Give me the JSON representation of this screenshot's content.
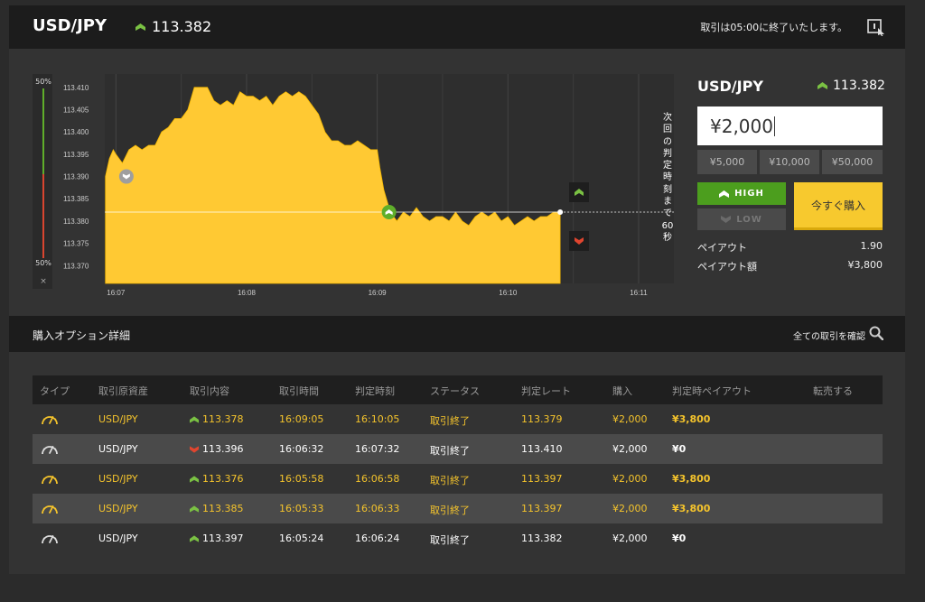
{
  "header": {
    "pair": "USD/JPY",
    "rate": "113.382",
    "rate_direction": "up",
    "message": "取引は05:00に終了いたします。",
    "expand_icon": "expand-icon"
  },
  "gauge": {
    "top_label": "50%",
    "bottom_label": "50%",
    "close_label": "×",
    "high_percent": 50,
    "low_percent": 50
  },
  "chart_data": {
    "type": "area",
    "title": "",
    "xlabel": "",
    "ylabel": "",
    "x_ticks": [
      "16:07",
      "16:08",
      "16:09",
      "16:10",
      "16:11"
    ],
    "y_ticks": [
      "113.410",
      "113.405",
      "113.400",
      "113.395",
      "113.390",
      "113.385",
      "113.380",
      "113.375",
      "113.370"
    ],
    "ylim": [
      113.366,
      113.413
    ],
    "xlim_minutes": [
      6.915,
      11.27
    ],
    "entry_rate": 113.382,
    "series": [
      {
        "x_minutes": [
          6.92,
          6.95,
          6.98,
          7.0,
          7.05,
          7.1,
          7.15,
          7.2,
          7.25,
          7.3,
          7.35,
          7.4,
          7.45,
          7.5,
          7.55,
          7.6,
          7.65,
          7.7,
          7.75,
          7.8,
          7.85,
          7.9,
          7.95,
          8.0,
          8.05,
          8.1,
          8.15,
          8.2,
          8.25,
          8.3,
          8.35,
          8.4,
          8.45,
          8.5,
          8.55,
          8.6,
          8.65,
          8.7,
          8.75,
          8.8,
          8.85,
          8.9,
          8.95,
          9.0,
          9.02,
          9.05,
          9.08,
          9.1,
          9.15,
          9.2,
          9.25,
          9.3,
          9.35,
          9.4,
          9.45,
          9.5,
          9.55,
          9.6,
          9.65,
          9.7,
          9.75,
          9.8,
          9.85,
          9.9,
          9.95,
          10.0,
          10.05,
          10.1,
          10.15,
          10.2,
          10.25,
          10.3,
          10.35,
          10.4
        ],
        "values": [
          113.39,
          113.394,
          113.396,
          113.395,
          113.393,
          113.396,
          113.397,
          113.396,
          113.397,
          113.397,
          113.4,
          113.401,
          113.403,
          113.403,
          113.405,
          113.41,
          113.41,
          113.41,
          113.407,
          113.406,
          113.407,
          113.406,
          113.409,
          113.408,
          113.408,
          113.407,
          113.408,
          113.406,
          113.408,
          113.409,
          113.408,
          113.409,
          113.408,
          113.406,
          113.404,
          113.4,
          113.398,
          113.398,
          113.397,
          113.397,
          113.398,
          113.397,
          113.396,
          113.396,
          113.392,
          113.387,
          113.384,
          113.382,
          113.38,
          113.382,
          113.381,
          113.383,
          113.381,
          113.38,
          113.381,
          113.381,
          113.38,
          113.382,
          113.38,
          113.379,
          113.381,
          113.382,
          113.381,
          113.382,
          113.38,
          113.381,
          113.379,
          113.38,
          113.381,
          113.38,
          113.381,
          113.381,
          113.382,
          113.382
        ]
      }
    ],
    "markers": [
      {
        "x_minutes": 7.08,
        "value": 113.39,
        "type": "down",
        "color": "#9e9e9e"
      },
      {
        "x_minutes": 9.09,
        "value": 113.382,
        "type": "up",
        "color": "#5fae2a"
      }
    ],
    "colors": {
      "area": "#ffc933",
      "grid": "#444444",
      "background": "#2e2e2e"
    }
  },
  "countdown": [
    "次",
    "回",
    "の",
    "判",
    "定",
    "時",
    "刻",
    "ま",
    "で",
    "60",
    "秒"
  ],
  "trade": {
    "pair": "USD/JPY",
    "rate": "113.382",
    "amount": "¥2,000",
    "quick_amounts": [
      "¥5,000",
      "¥10,000",
      "¥50,000"
    ],
    "high_label": "HIGH",
    "low_label": "LOW",
    "buy_label": "今すぐ購入",
    "payout_label": "ペイアウト",
    "payout_value": "1.90",
    "payout_amount_label": "ペイアウト額",
    "payout_amount_value": "¥3,800"
  },
  "details": {
    "title": "購入オプション詳細",
    "all_trades_link": "全ての取引を確認"
  },
  "table": {
    "headers": [
      "タイプ",
      "取引原資産",
      "取引内容",
      "取引時間",
      "判定時刻",
      "ステータス",
      "判定レート",
      "購入",
      "判定時ペイアウト",
      "転売する"
    ],
    "rows": [
      {
        "asset": "USD/JPY",
        "direction": "up",
        "rate": "113.378",
        "time": "16:09:05",
        "expiry": "16:10:05",
        "status": "取引終了",
        "expiry_rate": "113.379",
        "purchase": "¥2,000",
        "payout": "¥3,800",
        "win": true
      },
      {
        "asset": "USD/JPY",
        "direction": "down",
        "rate": "113.396",
        "time": "16:06:32",
        "expiry": "16:07:32",
        "status": "取引終了",
        "expiry_rate": "113.410",
        "purchase": "¥2,000",
        "payout": "¥0",
        "win": false
      },
      {
        "asset": "USD/JPY",
        "direction": "up",
        "rate": "113.376",
        "time": "16:05:58",
        "expiry": "16:06:58",
        "status": "取引終了",
        "expiry_rate": "113.397",
        "purchase": "¥2,000",
        "payout": "¥3,800",
        "win": true
      },
      {
        "asset": "USD/JPY",
        "direction": "up",
        "rate": "113.385",
        "time": "16:05:33",
        "expiry": "16:06:33",
        "status": "取引終了",
        "expiry_rate": "113.397",
        "purchase": "¥2,000",
        "payout": "¥3,800",
        "win": true
      },
      {
        "asset": "USD/JPY",
        "direction": "up",
        "rate": "113.397",
        "time": "16:05:24",
        "expiry": "16:06:24",
        "status": "取引終了",
        "expiry_rate": "113.382",
        "purchase": "¥2,000",
        "payout": "¥0",
        "win": false
      }
    ]
  }
}
